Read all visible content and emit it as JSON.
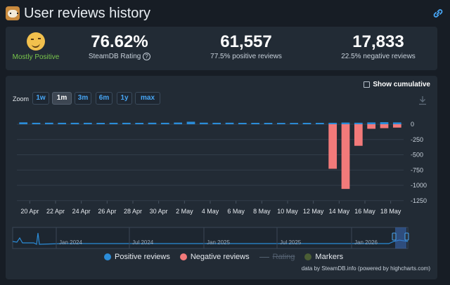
{
  "header": {
    "title": "User reviews history",
    "logo": "corgi-logo",
    "link_icon": "link-icon"
  },
  "summary": {
    "mood": "Mostly Positive",
    "mood_icon": "smiley-icon",
    "rating_value": "76.62%",
    "rating_label": "SteamDB Rating",
    "help_icon": "?",
    "positive_count": "61,557",
    "positive_label": "77.5% positive reviews",
    "negative_count": "17,833",
    "negative_label": "22.5% negative reviews"
  },
  "controls": {
    "show_cumulative": "Show cumulative",
    "zoom_label": "Zoom",
    "zoom_options": [
      "1w",
      "1m",
      "3m",
      "6m",
      "1y",
      "max"
    ],
    "active_zoom": "1m"
  },
  "chart_data": {
    "type": "bar",
    "series": [
      {
        "name": "Positive reviews",
        "color": "#2b8cd8",
        "values": [
          31,
          24,
          25,
          24,
          24,
          24,
          23,
          24,
          24,
          23,
          25,
          24,
          28,
          41,
          26,
          24,
          25,
          23,
          23,
          23,
          22,
          22,
          23,
          23,
          24,
          28,
          25,
          30,
          34,
          30
        ]
      },
      {
        "name": "Negative reviews",
        "color": "#f27a7a",
        "values": [
          0,
          0,
          0,
          0,
          0,
          0,
          0,
          0,
          0,
          0,
          0,
          0,
          0,
          0,
          0,
          0,
          0,
          0,
          0,
          0,
          0,
          0,
          0,
          0,
          -729,
          -1059,
          -353,
          -74,
          -64,
          -55
        ]
      }
    ],
    "x_tick_labels": [
      "20 Apr",
      "22 Apr",
      "24 Apr",
      "26 Apr",
      "28 Apr",
      "30 Apr",
      "2 May",
      "4 May",
      "6 May",
      "8 May",
      "10 May",
      "12 May",
      "14 May",
      "16 May",
      "18 May"
    ],
    "y_tick_labels": [
      "0",
      "-250",
      "-500",
      "-750",
      "-1000",
      "-1250"
    ],
    "ylim": [
      -1300,
      40
    ],
    "grid": true
  },
  "navigator": {
    "labels": [
      "Jan 2024",
      "Jul 2024",
      "Jan 2025",
      "Jul 2025",
      "Jan 2026"
    ]
  },
  "legend": {
    "items": [
      {
        "label": "Positive reviews",
        "color": "#2b8cd8"
      },
      {
        "label": "Negative reviews",
        "color": "#f27a7a"
      },
      {
        "label": "Rating",
        "color": "#546171"
      },
      {
        "label": "Markers",
        "color": "#4b5e35"
      }
    ]
  },
  "credit": "data by SteamDB.info (powered by highcharts.com)"
}
